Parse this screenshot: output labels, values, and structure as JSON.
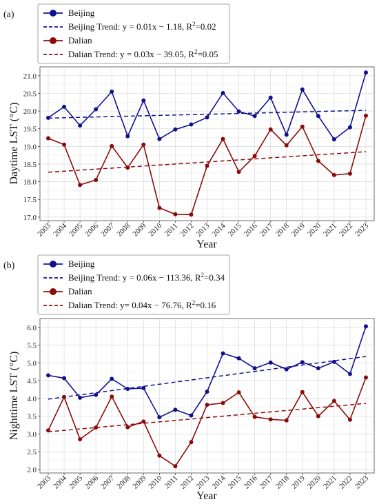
{
  "colors": {
    "beijing": "#10108f",
    "dalian": "#8b0b0b",
    "grid": "#d9d9d9"
  },
  "chart_data": [
    {
      "type": "line",
      "panel_label": "(a)",
      "xlabel": "Year",
      "ylabel": "Daytime LST (°C)",
      "x": [
        2003,
        2004,
        2005,
        2006,
        2007,
        2008,
        2009,
        2010,
        2011,
        2012,
        2013,
        2014,
        2015,
        2016,
        2017,
        2018,
        2019,
        2020,
        2021,
        2022,
        2023
      ],
      "ylim": [
        16.9,
        21.25
      ],
      "yticks": [
        "17.0",
        "17.5",
        "18.0",
        "18.5",
        "19.0",
        "19.5",
        "20.0",
        "20.5",
        "21.0"
      ],
      "series": [
        {
          "name": "Beijing",
          "values": [
            19.81,
            20.12,
            19.59,
            20.05,
            20.55,
            19.29,
            20.3,
            19.21,
            19.48,
            19.62,
            19.82,
            20.51,
            19.99,
            19.86,
            20.38,
            19.33,
            20.61,
            19.86,
            19.2,
            19.54,
            21.09
          ]
        },
        {
          "name": "Dalian",
          "values": [
            19.23,
            19.05,
            17.91,
            18.05,
            19.01,
            18.4,
            19.05,
            17.26,
            17.08,
            17.07,
            18.45,
            19.21,
            18.28,
            18.73,
            19.48,
            19.03,
            19.56,
            18.59,
            18.19,
            18.23,
            19.87
          ]
        }
      ],
      "trends": [
        {
          "name": "Beijing Trend: y = 0.01x − 1.18, R",
          "r2": "=0.02",
          "start": 19.8,
          "end": 20.02
        },
        {
          "name": "Dalian Trend: y = 0.03x − 39.05, R",
          "r2": "=0.05",
          "start": 18.27,
          "end": 18.85
        }
      ]
    },
    {
      "type": "line",
      "panel_label": "(b)",
      "xlabel": "Year",
      "ylabel": "Nighttime LST (°C)",
      "x": [
        2003,
        2004,
        2005,
        2006,
        2007,
        2008,
        2009,
        2010,
        2011,
        2012,
        2013,
        2014,
        2015,
        2016,
        2017,
        2018,
        2019,
        2020,
        2021,
        2022,
        2023
      ],
      "ylim": [
        1.9,
        6.25
      ],
      "yticks": [
        "2.0",
        "2.5",
        "3.0",
        "3.5",
        "4.0",
        "4.5",
        "5.0",
        "5.5",
        "6.0"
      ],
      "series": [
        {
          "name": "Beijing",
          "values": [
            4.65,
            4.57,
            4.02,
            4.1,
            4.55,
            4.27,
            4.29,
            3.47,
            3.68,
            3.52,
            4.19,
            5.27,
            5.13,
            4.85,
            5.01,
            4.82,
            5.02,
            4.85,
            5.03,
            4.69,
            6.03
          ]
        },
        {
          "name": "Dalian",
          "values": [
            3.1,
            4.04,
            2.85,
            3.18,
            4.05,
            3.19,
            3.35,
            2.39,
            2.09,
            2.77,
            3.82,
            3.87,
            4.17,
            3.48,
            3.41,
            3.38,
            4.18,
            3.5,
            3.93,
            3.4,
            4.59
          ]
        }
      ],
      "trends": [
        {
          "name": "Beijing Trend: y = 0.06x − 113.36, R",
          "r2": "=0.34",
          "start": 3.98,
          "end": 5.18
        },
        {
          "name": "Dalian Trend: y= 0.04x − 76.76, R",
          "r2": "=0.16",
          "start": 3.06,
          "end": 3.86
        }
      ]
    }
  ]
}
